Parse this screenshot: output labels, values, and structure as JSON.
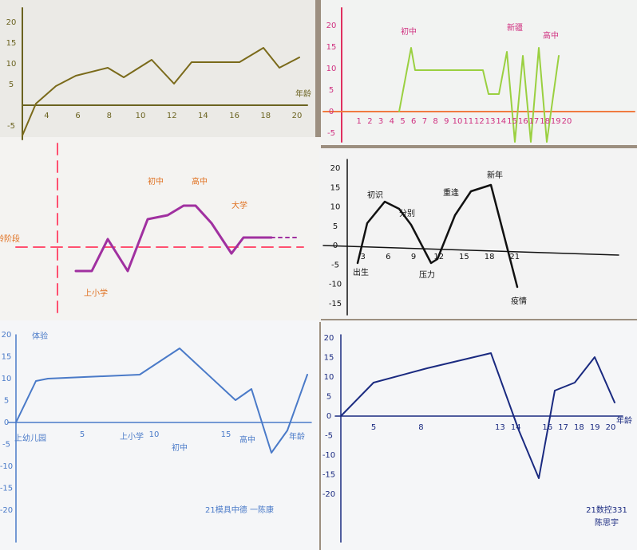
{
  "panels": [
    {
      "yticks": [
        20,
        15,
        10,
        5,
        -5
      ],
      "xticks": [
        4,
        6,
        8,
        10,
        12,
        14,
        16,
        18,
        20
      ],
      "labels": [
        "年龄"
      ]
    },
    {
      "yticks": [
        20,
        15,
        10,
        5,
        0,
        -5
      ],
      "xticks": [
        1,
        2,
        3,
        4,
        5,
        6,
        7,
        8,
        9,
        10,
        11,
        12,
        13,
        14,
        15,
        16,
        17,
        18,
        19,
        20
      ],
      "labels": [
        "初中",
        "新疆",
        "高中"
      ]
    },
    {
      "yticks": [],
      "xticks": [],
      "labels": [
        "年龄阶段",
        "上小学",
        "初中",
        "高中",
        "大学"
      ]
    },
    {
      "yticks": [
        20,
        15,
        10,
        5,
        0,
        -5,
        -10,
        -15
      ],
      "xticks": [
        3,
        6,
        9,
        12,
        15,
        18,
        21
      ],
      "labels": [
        "初识",
        "分别",
        "压力",
        "重逢",
        "新年",
        "疫情",
        "出生"
      ]
    },
    {
      "yticks": [
        20,
        15,
        10,
        5,
        0,
        -5,
        -10,
        -15,
        -20
      ],
      "xticks": [
        5,
        10,
        15
      ],
      "labels": [
        "体验",
        "上幼儿园",
        "上小学",
        "初中",
        "高中",
        "年龄",
        "21模具中德 一陈康"
      ]
    },
    {
      "yticks": [
        20,
        15,
        10,
        5,
        0,
        -5,
        -10,
        -15,
        -20
      ],
      "xticks": [
        5,
        8,
        13,
        14,
        16,
        17,
        18,
        19,
        20
      ],
      "labels": [
        "年龄",
        "21数控331",
        "陈思宇"
      ]
    }
  ]
}
